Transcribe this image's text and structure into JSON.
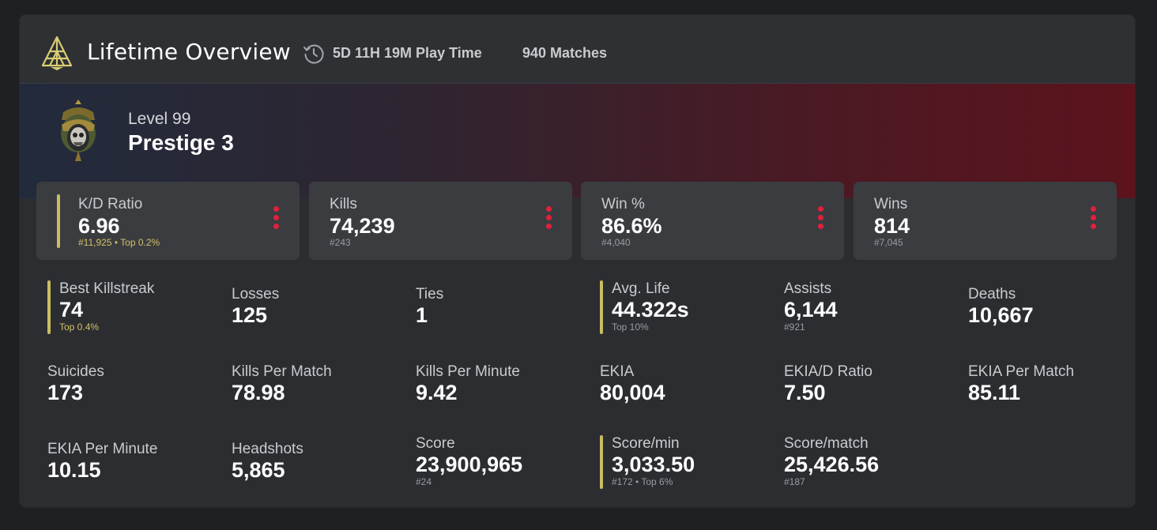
{
  "header": {
    "title": "Lifetime Overview",
    "playtime": "5D 11H 19M Play Time",
    "matches": "940 Matches",
    "logo_icon": "pyramid-logo-icon",
    "clock_icon": "clock-history-icon"
  },
  "rank": {
    "level": "Level 99",
    "prestige": "Prestige 3",
    "emblem_icon": "prestige-emblem-icon"
  },
  "colors": {
    "accent": "#c8bd62",
    "menu": "#e1203a",
    "banner_left": "#222b3c",
    "banner_right": "#5c131c"
  },
  "top_stats": [
    {
      "label": "K/D Ratio",
      "value": "6.96",
      "sub": "#11,925 • Top 0.2%"
    },
    {
      "label": "Kills",
      "value": "74,239",
      "sub": "#243"
    },
    {
      "label": "Win %",
      "value": "86.6%",
      "sub": "#4,040"
    },
    {
      "label": "Wins",
      "value": "814",
      "sub": "#7,045"
    }
  ],
  "stats": [
    {
      "label": "Best Killstreak",
      "value": "74",
      "sub": "Top 0.4%"
    },
    {
      "label": "Losses",
      "value": "125"
    },
    {
      "label": "Ties",
      "value": "1"
    },
    {
      "label": "Avg. Life",
      "value": "44.322s",
      "sub": "Top 10%"
    },
    {
      "label": "Assists",
      "value": "6,144",
      "sub": "#921"
    },
    {
      "label": "Deaths",
      "value": "10,667"
    },
    {
      "label": "Suicides",
      "value": "173"
    },
    {
      "label": "Kills Per Match",
      "value": "78.98"
    },
    {
      "label": "Kills Per Minute",
      "value": "9.42"
    },
    {
      "label": "EKIA",
      "value": "80,004"
    },
    {
      "label": "EKIA/D Ratio",
      "value": "7.50"
    },
    {
      "label": "EKIA Per Match",
      "value": "85.11"
    },
    {
      "label": "EKIA Per Minute",
      "value": "10.15"
    },
    {
      "label": "Headshots",
      "value": "5,865"
    },
    {
      "label": "Score",
      "value": "23,900,965",
      "sub": "#24"
    },
    {
      "label": "Score/min",
      "value": "3,033.50",
      "sub": "#172 • Top 6%"
    },
    {
      "label": "Score/match",
      "value": "25,426.56",
      "sub": "#187"
    }
  ]
}
